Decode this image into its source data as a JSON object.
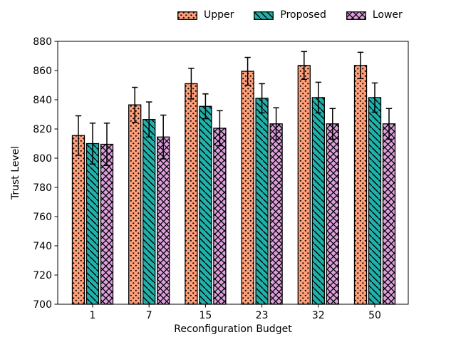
{
  "figure": {
    "background": "#ffffff"
  },
  "chart_data": {
    "type": "bar",
    "title": "",
    "xlabel": "Reconfiguration Budget",
    "ylabel": "Trust Level",
    "categories": [
      "1",
      "7",
      "15",
      "23",
      "32",
      "50"
    ],
    "series": [
      {
        "name": "Upper",
        "color": "#FFA07A",
        "hatch": "dots",
        "values": [
          815.5,
          836.5,
          851,
          859.5,
          863.5,
          863.5
        ],
        "errors": [
          13.5,
          12,
          10.5,
          9.5,
          9.5,
          9
        ]
      },
      {
        "name": "Proposed",
        "color": "#20B2AA",
        "hatch": "diagonal",
        "values": [
          810,
          826.5,
          835.5,
          841,
          841.5,
          841.5
        ],
        "errors": [
          14,
          12,
          8.5,
          10,
          10.5,
          10
        ]
      },
      {
        "name": "Lower",
        "color": "#DDA0DD",
        "hatch": "cross",
        "values": [
          809.5,
          814.5,
          820.5,
          823.5,
          823.5,
          823.5
        ],
        "errors": [
          14.5,
          15,
          12,
          11,
          10.5,
          10.5
        ]
      }
    ],
    "ylim": [
      700,
      880
    ],
    "yticks": [
      700,
      720,
      740,
      760,
      780,
      800,
      820,
      840,
      860,
      880
    ],
    "bar_edge_color": "#000000",
    "hatch_color": "#000000",
    "error_bar_color": "#000000",
    "axis_color": "#000000",
    "legend": {
      "position": "top",
      "frame": false,
      "entries": [
        "Upper",
        "Proposed",
        "Lower"
      ]
    },
    "grid": false
  }
}
